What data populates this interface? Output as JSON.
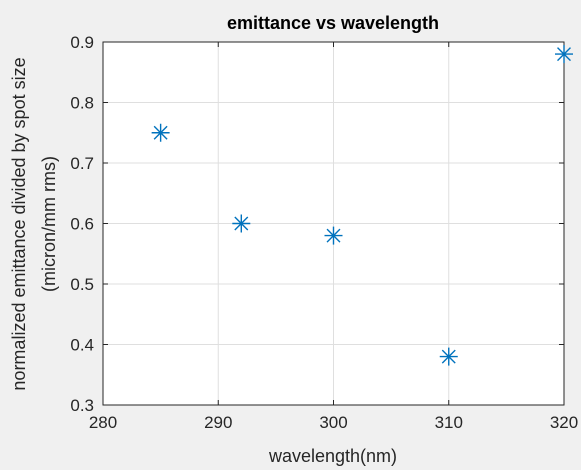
{
  "chart_data": {
    "type": "scatter",
    "title": "emittance vs wavelength",
    "xlabel": "wavelength(nm)",
    "ylabel_lines": [
      "normalized emittance divided by spot size",
      "(micron/mm rms)"
    ],
    "xlim": [
      280,
      320
    ],
    "ylim": [
      0.3,
      0.9
    ],
    "xticks": [
      280,
      290,
      300,
      310,
      320
    ],
    "yticks": [
      0.3,
      0.4,
      0.5,
      0.6,
      0.7,
      0.8,
      0.9
    ],
    "grid": true,
    "marker": "asterisk",
    "series": [
      {
        "color": "#0072bd",
        "points": [
          {
            "x": 285,
            "y": 0.75
          },
          {
            "x": 292,
            "y": 0.6
          },
          {
            "x": 300,
            "y": 0.58
          },
          {
            "x": 310,
            "y": 0.38
          },
          {
            "x": 320,
            "y": 0.88
          }
        ]
      }
    ]
  }
}
